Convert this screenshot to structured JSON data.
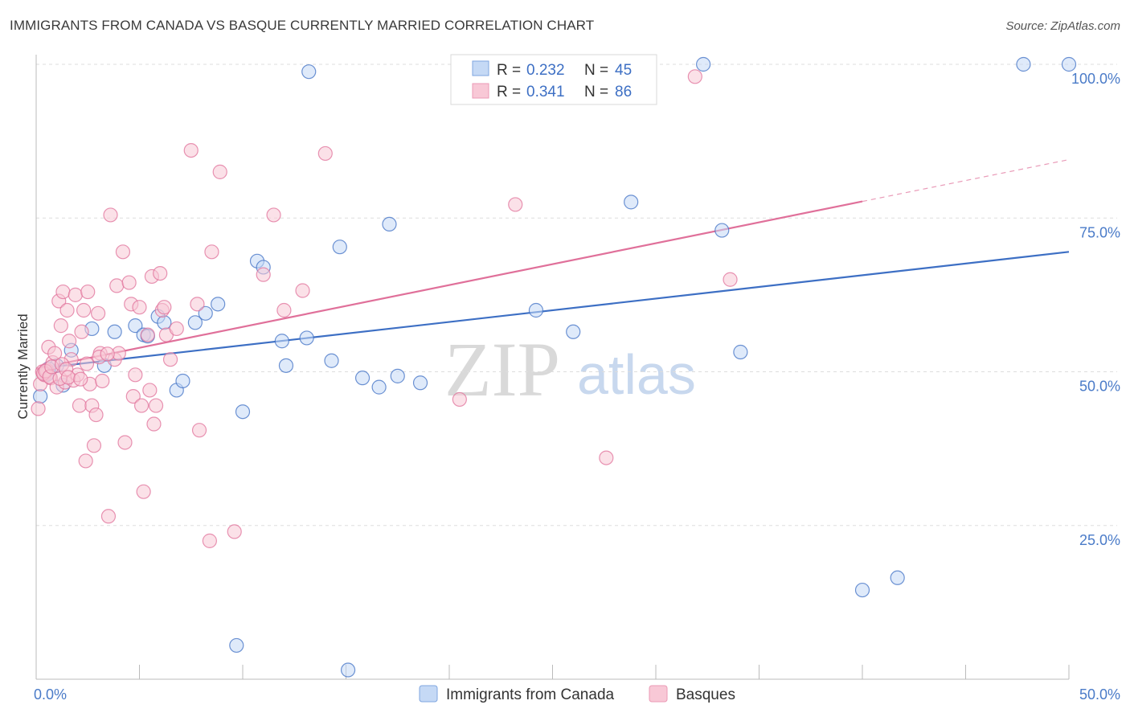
{
  "title": "IMMIGRANTS FROM CANADA VS BASQUE CURRENTLY MARRIED CORRELATION CHART",
  "source": "Source: ZipAtlas.com",
  "colors": {
    "blue": "#3d6fc4",
    "pink": "#e0709a",
    "blue_fill": "#c5d9f5",
    "pink_fill": "#f8c8d6",
    "grid": "#dddddd",
    "axis_label": "#4a7bc8"
  },
  "watermark": {
    "zip": "ZIP",
    "atlas": "atlas"
  },
  "chart_data": {
    "type": "scatter",
    "title": "IMMIGRANTS FROM CANADA VS BASQUE CURRENTLY MARRIED CORRELATION CHART",
    "xlabel": "",
    "ylabel": "Currently Married",
    "xlim": [
      0,
      50
    ],
    "ylim": [
      0,
      100
    ],
    "x_tick_labels": [
      "0.0%",
      "50.0%"
    ],
    "y_tick_labels": [
      "25.0%",
      "50.0%",
      "75.0%",
      "100.0%"
    ],
    "y_ticks": [
      25,
      50,
      75,
      100
    ],
    "legend": [
      {
        "name": "Immigrants from Canada",
        "r_label": "R =",
        "r": "0.232",
        "n_label": "N =",
        "n": "45"
      },
      {
        "name": "Basques",
        "r_label": "R =",
        "r": "0.341",
        "n_label": "N =",
        "n": "86"
      }
    ],
    "series": [
      {
        "name": "Immigrants from Canada",
        "color": "#3d6fc4",
        "trend": {
          "x0": 0,
          "y0": 50.5,
          "x1": 50,
          "y1": 69.5,
          "x_solid_end": 50
        },
        "points": [
          [
            0.2,
            46
          ],
          [
            0.5,
            49.5
          ],
          [
            1.0,
            51
          ],
          [
            1.7,
            53.5
          ],
          [
            2.7,
            57
          ],
          [
            3.3,
            51
          ],
          [
            3.8,
            56.5
          ],
          [
            4.8,
            57.5
          ],
          [
            5.2,
            56
          ],
          [
            5.9,
            59
          ],
          [
            6.2,
            58
          ],
          [
            6.8,
            47
          ],
          [
            7.1,
            48.5
          ],
          [
            7.7,
            58
          ],
          [
            8.2,
            59.5
          ],
          [
            8.8,
            61
          ],
          [
            9.7,
            5.5
          ],
          [
            10.0,
            43.5
          ],
          [
            10.7,
            68
          ],
          [
            11.0,
            67
          ],
          [
            11.9,
            55
          ],
          [
            12.1,
            51
          ],
          [
            13.1,
            55.5
          ],
          [
            13.2,
            98.8
          ],
          [
            14.3,
            51.8
          ],
          [
            14.7,
            70.3
          ],
          [
            15.1,
            1.5
          ],
          [
            15.8,
            49
          ],
          [
            16.6,
            47.5
          ],
          [
            17.1,
            74
          ],
          [
            17.5,
            49.3
          ],
          [
            18.6,
            48.2
          ],
          [
            24.2,
            60
          ],
          [
            26.0,
            56.5
          ],
          [
            28.8,
            77.6
          ],
          [
            32.3,
            100
          ],
          [
            33.2,
            73
          ],
          [
            34.1,
            53.2
          ],
          [
            40.0,
            14.5
          ],
          [
            41.7,
            16.5
          ],
          [
            47.8,
            100
          ],
          [
            50.0,
            100
          ],
          [
            0.6,
            50.5
          ],
          [
            1.3,
            47.8
          ],
          [
            5.4,
            55.8
          ]
        ]
      },
      {
        "name": "Basques",
        "color": "#e0709a",
        "trend": {
          "x0": 0,
          "y0": 50.5,
          "x1": 50,
          "y1": 84.5,
          "x_solid_end": 40
        },
        "points": [
          [
            0.1,
            44
          ],
          [
            0.2,
            48
          ],
          [
            0.3,
            50
          ],
          [
            0.4,
            49.5
          ],
          [
            0.5,
            50.3
          ],
          [
            0.6,
            54
          ],
          [
            0.7,
            49
          ],
          [
            0.8,
            51.5
          ],
          [
            0.9,
            53
          ],
          [
            1.0,
            47.5
          ],
          [
            1.1,
            61.5
          ],
          [
            1.2,
            57.5
          ],
          [
            1.3,
            63
          ],
          [
            1.4,
            48.3
          ],
          [
            1.5,
            60
          ],
          [
            1.6,
            55
          ],
          [
            1.7,
            52
          ],
          [
            1.8,
            48.6
          ],
          [
            1.9,
            62.5
          ],
          [
            2.0,
            49.5
          ],
          [
            2.1,
            44.5
          ],
          [
            2.2,
            56.5
          ],
          [
            2.3,
            60
          ],
          [
            2.4,
            35.5
          ],
          [
            2.5,
            63
          ],
          [
            2.6,
            48
          ],
          [
            2.7,
            44.5
          ],
          [
            2.8,
            38
          ],
          [
            2.9,
            43
          ],
          [
            3.0,
            59.5
          ],
          [
            3.1,
            53
          ],
          [
            3.2,
            48.5
          ],
          [
            3.5,
            26.5
          ],
          [
            3.6,
            75.5
          ],
          [
            3.8,
            52
          ],
          [
            3.9,
            64
          ],
          [
            4.0,
            53
          ],
          [
            4.2,
            69.5
          ],
          [
            4.3,
            38.5
          ],
          [
            4.5,
            64.5
          ],
          [
            4.6,
            61
          ],
          [
            4.7,
            46
          ],
          [
            4.8,
            49.5
          ],
          [
            5.0,
            60.5
          ],
          [
            5.1,
            44.5
          ],
          [
            5.2,
            30.5
          ],
          [
            5.4,
            56
          ],
          [
            5.5,
            47
          ],
          [
            5.6,
            65.5
          ],
          [
            5.7,
            41.5
          ],
          [
            5.8,
            44.5
          ],
          [
            6.0,
            66
          ],
          [
            6.1,
            60
          ],
          [
            6.2,
            60.5
          ],
          [
            6.3,
            56
          ],
          [
            6.5,
            52
          ],
          [
            6.8,
            57
          ],
          [
            7.5,
            86
          ],
          [
            7.8,
            61
          ],
          [
            7.9,
            40.5
          ],
          [
            8.4,
            22.5
          ],
          [
            8.5,
            69.5
          ],
          [
            8.9,
            82.5
          ],
          [
            9.6,
            24
          ],
          [
            11.0,
            65.8
          ],
          [
            11.5,
            75.5
          ],
          [
            12.0,
            60
          ],
          [
            12.9,
            63.2
          ],
          [
            14.0,
            85.5
          ],
          [
            20.5,
            45.5
          ],
          [
            23.2,
            77.2
          ],
          [
            27.6,
            36
          ],
          [
            31.9,
            98
          ],
          [
            33.6,
            65
          ],
          [
            0.35,
            49.7
          ],
          [
            0.45,
            50.1
          ],
          [
            0.65,
            49.2
          ],
          [
            0.75,
            50.8
          ],
          [
            1.15,
            48.9
          ],
          [
            1.25,
            51.2
          ],
          [
            1.45,
            50.4
          ],
          [
            1.55,
            49.1
          ],
          [
            2.15,
            48.8
          ],
          [
            2.45,
            51.3
          ],
          [
            3.05,
            52.4
          ],
          [
            3.45,
            52.9
          ]
        ]
      }
    ]
  }
}
